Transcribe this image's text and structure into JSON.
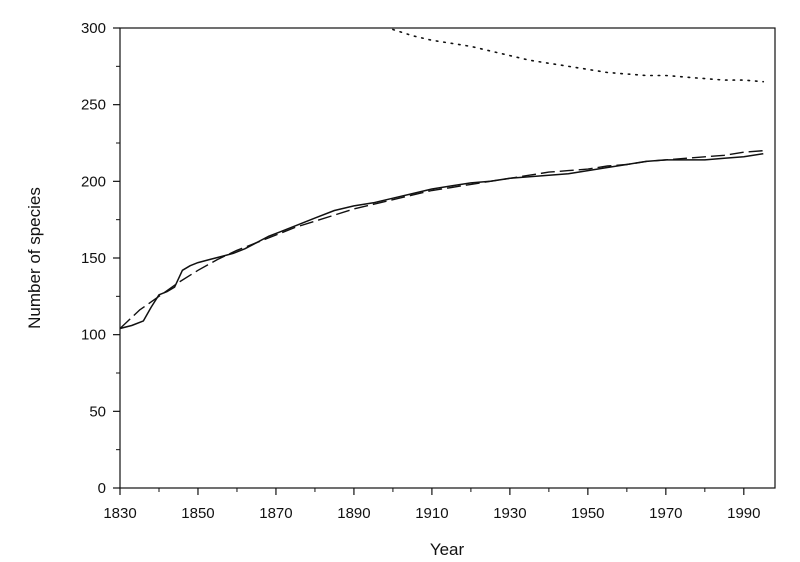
{
  "chart_data": {
    "type": "line",
    "title": "",
    "xlabel": "Year",
    "ylabel": "Number of species",
    "xlim": [
      1830,
      1998
    ],
    "ylim": [
      0,
      300
    ],
    "x_ticks": [
      1830,
      1850,
      1870,
      1890,
      1910,
      1930,
      1950,
      1970,
      1990
    ],
    "y_ticks": [
      0,
      50,
      100,
      150,
      200,
      250,
      300
    ],
    "grid": false,
    "legend": "none",
    "series": [
      {
        "style": "solid",
        "color": "#111111",
        "x": [
          1830,
          1833,
          1836,
          1838,
          1840,
          1842,
          1844,
          1846,
          1848,
          1850,
          1853,
          1856,
          1859,
          1862,
          1865,
          1868,
          1871,
          1875,
          1880,
          1885,
          1890,
          1895,
          1900,
          1905,
          1910,
          1915,
          1920,
          1925,
          1930,
          1935,
          1940,
          1945,
          1950,
          1955,
          1960,
          1965,
          1970,
          1975,
          1980,
          1985,
          1990,
          1995
        ],
        "y": [
          104,
          106,
          109,
          118,
          126,
          128,
          131,
          142,
          145,
          147,
          149,
          151,
          153,
          156,
          160,
          164,
          167,
          171,
          176,
          181,
          184,
          186,
          189,
          192,
          195,
          197,
          199,
          200,
          202,
          203,
          204,
          205,
          207,
          209,
          211,
          213,
          214,
          214,
          214,
          215,
          216,
          218
        ]
      },
      {
        "style": "dashed",
        "color": "#111111",
        "x": [
          1830,
          1835,
          1840,
          1845,
          1850,
          1855,
          1860,
          1865,
          1870,
          1875,
          1880,
          1885,
          1890,
          1895,
          1900,
          1905,
          1910,
          1915,
          1920,
          1925,
          1930,
          1935,
          1940,
          1945,
          1950,
          1955,
          1960,
          1965,
          1970,
          1975,
          1980,
          1985,
          1990,
          1995
        ],
        "y": [
          104,
          116,
          125,
          134,
          142,
          149,
          155,
          160,
          165,
          170,
          174,
          178,
          182,
          185,
          188,
          191,
          194,
          196,
          198,
          200,
          202,
          204,
          206,
          207,
          208,
          210,
          211,
          213,
          214,
          215,
          216,
          217,
          219,
          220
        ]
      },
      {
        "style": "dotted",
        "color": "#111111",
        "x": [
          1900,
          1905,
          1910,
          1915,
          1920,
          1925,
          1930,
          1935,
          1940,
          1945,
          1950,
          1955,
          1960,
          1965,
          1970,
          1975,
          1980,
          1985,
          1990,
          1995
        ],
        "y": [
          299,
          295,
          292,
          290,
          288,
          285,
          282,
          279,
          277,
          275,
          273,
          271,
          270,
          269,
          269,
          268,
          267,
          266,
          266,
          265
        ]
      }
    ]
  }
}
